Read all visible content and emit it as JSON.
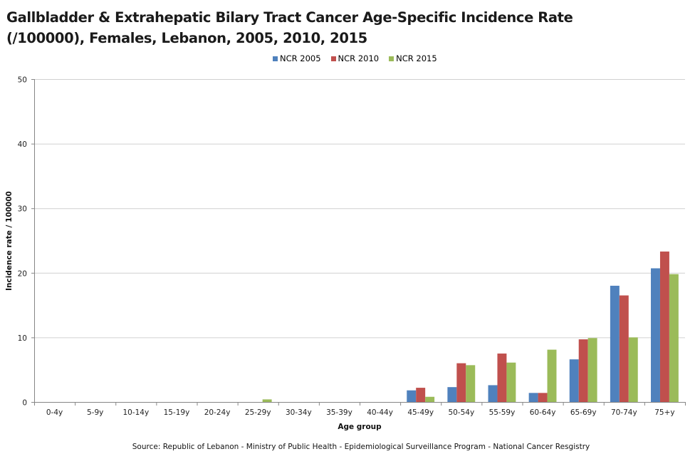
{
  "chart_data": {
    "type": "bar",
    "title": "Gallbladder & Extrahepatic Bilary Tract Cancer Age-Specific Incidence Rate (/100000), Females, Lebanon, 2005, 2010, 2015",
    "title_lines": [
      "Gallbladder & Extrahepatic Bilary Tract Cancer Age-Specific Incidence Rate",
      "(/100000),  Females, Lebanon, 2005, 2010, 2015"
    ],
    "xlabel": "Age group",
    "ylabel": "Incidence  rate / 100000",
    "ylim": [
      0,
      50
    ],
    "yticks": [
      0,
      10,
      20,
      30,
      40,
      50
    ],
    "grid": true,
    "legend_position": "top-center",
    "categories": [
      "0-4y",
      "5-9y",
      "10-14y",
      "15-19y",
      "20-24y",
      "25-29y",
      "30-34y",
      "35-39y",
      "40-44y",
      "45-49y",
      "50-54y",
      "55-59y",
      "60-64y",
      "65-69y",
      "70-74y",
      "75+y"
    ],
    "series": [
      {
        "name": "NCR 2005",
        "color": "#4f81bd",
        "values": [
          0,
          0,
          0,
          0,
          0,
          0,
          0,
          0,
          0,
          1.8,
          2.3,
          2.6,
          1.4,
          6.6,
          18.0,
          20.7
        ]
      },
      {
        "name": "NCR 2010",
        "color": "#c0504d",
        "values": [
          0,
          0,
          0,
          0,
          0,
          0,
          0,
          0,
          0,
          2.2,
          6.0,
          7.5,
          1.4,
          9.7,
          16.5,
          23.3
        ]
      },
      {
        "name": "NCR 2015",
        "color": "#9bbb59",
        "values": [
          0,
          0,
          0,
          0,
          0,
          0.4,
          0,
          0,
          0,
          0.8,
          5.7,
          6.1,
          8.1,
          9.9,
          10.0,
          19.8
        ]
      }
    ],
    "source": "Source: Republic of Lebanon - Ministry of Public Health - Epidemiological Surveillance Program - National Cancer Resgistry"
  }
}
